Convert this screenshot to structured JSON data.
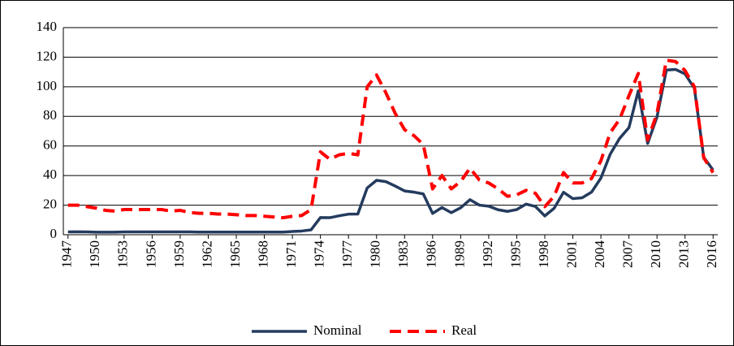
{
  "chart_data": {
    "type": "line",
    "x": [
      1947,
      1948,
      1949,
      1950,
      1951,
      1952,
      1953,
      1954,
      1955,
      1956,
      1957,
      1958,
      1959,
      1960,
      1961,
      1962,
      1963,
      1964,
      1965,
      1966,
      1967,
      1968,
      1969,
      1970,
      1971,
      1972,
      1973,
      1974,
      1975,
      1976,
      1977,
      1978,
      1979,
      1980,
      1981,
      1982,
      1983,
      1984,
      1985,
      1986,
      1987,
      1988,
      1989,
      1990,
      1991,
      1992,
      1993,
      1994,
      1995,
      1996,
      1997,
      1998,
      1999,
      2000,
      2001,
      2002,
      2003,
      2004,
      2005,
      2006,
      2007,
      2008,
      2009,
      2010,
      2011,
      2012,
      2013,
      2014,
      2015,
      2016
    ],
    "series": [
      {
        "name": "Nominal",
        "color": "#243b5e",
        "dash": false,
        "values": [
          1.9,
          2.0,
          1.9,
          1.7,
          1.7,
          1.7,
          1.9,
          1.9,
          1.9,
          1.9,
          1.9,
          1.9,
          1.9,
          1.9,
          1.8,
          1.8,
          1.8,
          1.8,
          1.8,
          1.8,
          1.8,
          1.8,
          1.8,
          1.8,
          2.2,
          2.5,
          3.3,
          11.6,
          11.5,
          12.8,
          13.9,
          14.0,
          31.6,
          36.8,
          35.9,
          32.9,
          29.6,
          28.8,
          27.6,
          14.4,
          18.4,
          14.9,
          18.2,
          23.7,
          20.0,
          19.3,
          16.9,
          15.8,
          17.0,
          20.7,
          19.1,
          12.7,
          17.9,
          28.7,
          24.4,
          25.0,
          28.8,
          38.3,
          54.5,
          65.1,
          72.4,
          97.3,
          61.7,
          79.5,
          111.3,
          111.7,
          108.7,
          99.0,
          52.4,
          43.7
        ]
      },
      {
        "name": "Real",
        "color": "#ff0000",
        "dash": true,
        "values": [
          20,
          20,
          19,
          18,
          16.5,
          16,
          17,
          17,
          17,
          17,
          17,
          16,
          16.5,
          15,
          14.5,
          14.5,
          14,
          14,
          13.5,
          13,
          13,
          12.5,
          12,
          11.5,
          12.5,
          13,
          17,
          56,
          51,
          54,
          55,
          54,
          100,
          108,
          96,
          82,
          71,
          67,
          61,
          31,
          40,
          31,
          36,
          45,
          37,
          35,
          31,
          26,
          27,
          30,
          28,
          19,
          26,
          42,
          35,
          35,
          38,
          50,
          69,
          78,
          94,
          109,
          64,
          82,
          118,
          117,
          111,
          100,
          52,
          42
        ]
      }
    ],
    "xlim": [
      1946.5,
      2016.5
    ],
    "xticks": [
      1947,
      1950,
      1953,
      1956,
      1959,
      1962,
      1965,
      1968,
      1971,
      1974,
      1977,
      1980,
      1983,
      1986,
      1989,
      1992,
      1995,
      1998,
      2001,
      2004,
      2007,
      2010,
      2013,
      2016
    ],
    "ylim": [
      0,
      140
    ],
    "yticks": [
      0,
      20,
      40,
      60,
      80,
      100,
      120,
      140
    ],
    "grid": true,
    "legend": "bottom"
  }
}
